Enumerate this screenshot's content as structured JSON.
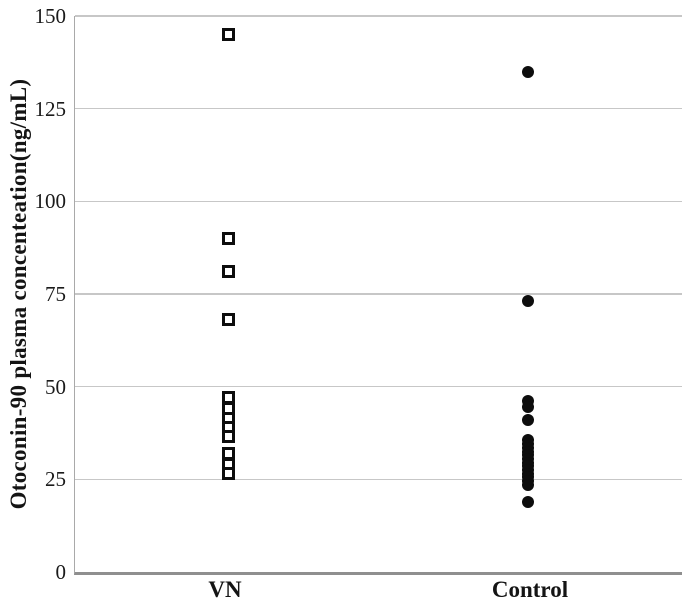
{
  "figure": {
    "background_color": "#ffffff",
    "text_color": "#141414"
  },
  "chart_data": {
    "type": "scatter",
    "title": "",
    "xlabel": "",
    "ylabel": "Otoconin-90 plasma concenteation(ng/mL)",
    "ylim": [
      0,
      150
    ],
    "yticks": [
      0,
      25,
      50,
      75,
      100,
      125,
      150
    ],
    "grid": true,
    "legend": false,
    "categories": [
      "VN",
      "Control"
    ],
    "series": [
      {
        "name": "VN",
        "marker": "open-square",
        "values": [
          145,
          90,
          81,
          68,
          47,
          44,
          41.5,
          39,
          36.5,
          32,
          29,
          26.5
        ]
      },
      {
        "name": "Control",
        "marker": "filled-circle",
        "values": [
          135,
          73,
          46,
          44.5,
          41,
          35.5,
          34.5,
          33.5,
          32.5,
          31.5,
          30.5,
          29.5,
          28.5,
          27.5,
          26.5,
          25.5,
          24.5,
          23.5,
          19
        ]
      }
    ],
    "colors": {
      "marker": "#0d0d0d",
      "gridline": "#c7c7c7",
      "y_axis_line": "#a9a9a9",
      "x_axis_line": "#8f8f8f",
      "background": "#ffffff"
    }
  }
}
